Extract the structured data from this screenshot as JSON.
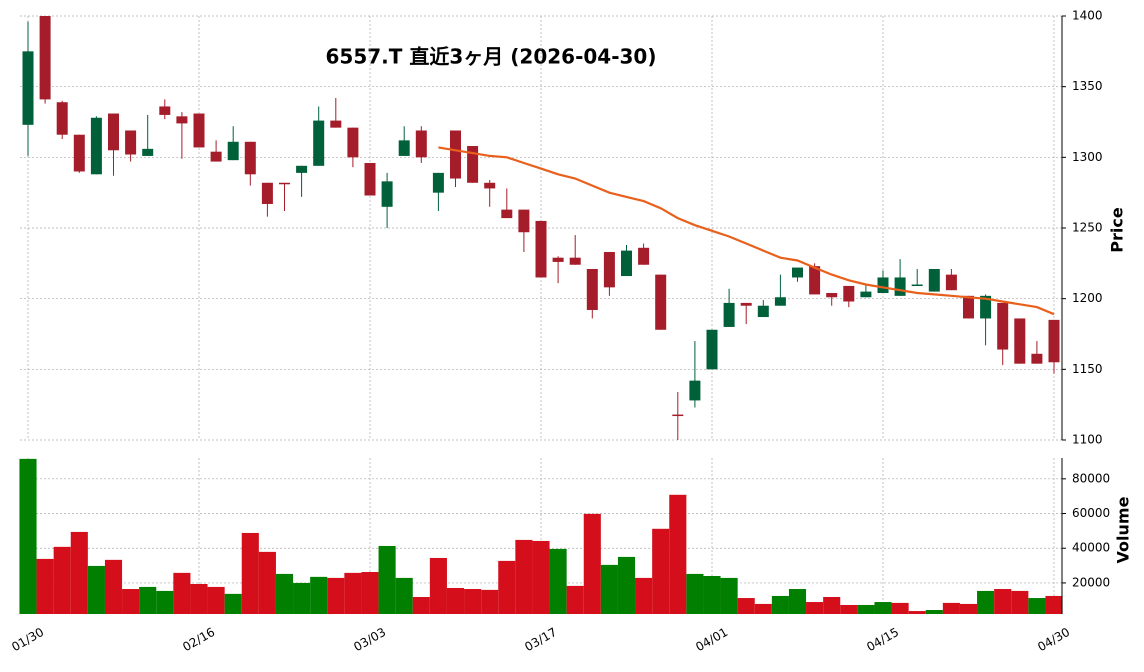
{
  "chart_data": {
    "type": "candlestick",
    "title": "6557.T  直近3ヶ月  (2026-04-30)",
    "categories": [
      "01/30",
      null,
      null,
      null,
      null,
      null,
      null,
      null,
      null,
      null,
      "02/16",
      null,
      null,
      null,
      null,
      null,
      null,
      null,
      null,
      null,
      "03/03",
      null,
      null,
      null,
      null,
      null,
      null,
      null,
      null,
      null,
      "03/17",
      null,
      null,
      null,
      null,
      null,
      null,
      null,
      null,
      null,
      "04/01",
      null,
      null,
      null,
      null,
      null,
      null,
      null,
      null,
      null,
      "04/15",
      null,
      null,
      null,
      null,
      null,
      null,
      null,
      null,
      null,
      "04/30"
    ],
    "open": [
      1323,
      1400,
      1339,
      1316,
      1288,
      1331,
      1319,
      1301,
      1336,
      1329,
      1331,
      1304,
      1298,
      1311,
      1282,
      1282,
      1289,
      1294,
      1326,
      1321,
      1296,
      1265,
      1301,
      1319,
      1275,
      1319,
      1308,
      1282,
      1263,
      1263,
      1255,
      1229,
      1229,
      1221,
      1233,
      1216,
      1236,
      1217,
      1118,
      1128,
      1150,
      1180,
      1197,
      1187,
      1195,
      1215,
      1223,
      1204,
      1209,
      1201,
      1204,
      1202,
      1209,
      1205,
      1217,
      1202,
      1186,
      1197,
      1186,
      1161,
      1185
    ],
    "high": [
      1396,
      1400,
      1340,
      1316,
      1329,
      1331,
      1319,
      1330,
      1341,
      1332,
      1331,
      1312,
      1322,
      1311,
      1282,
      1282,
      1294,
      1336,
      1342,
      1321,
      1296,
      1289,
      1322,
      1322,
      1289,
      1319,
      1308,
      1284,
      1278,
      1263,
      1255,
      1230,
      1245,
      1221,
      1233,
      1238,
      1239,
      1217,
      1134,
      1170,
      1178,
      1207,
      1197,
      1199,
      1217,
      1222,
      1225,
      1204,
      1209,
      1210,
      1220,
      1228,
      1221,
      1221,
      1221,
      1202,
      1203,
      1197,
      1186,
      1170,
      1185
    ],
    "low": [
      1301,
      1338,
      1313,
      1289,
      1288,
      1287,
      1297,
      1301,
      1327,
      1299,
      1307,
      1297,
      1298,
      1280,
      1258,
      1262,
      1272,
      1294,
      1321,
      1293,
      1273,
      1250,
      1301,
      1296,
      1262,
      1279,
      1282,
      1265,
      1257,
      1233,
      1215,
      1211,
      1224,
      1186,
      1202,
      1216,
      1224,
      1178,
      1100,
      1123,
      1150,
      1180,
      1182,
      1187,
      1195,
      1212,
      1203,
      1195,
      1194,
      1201,
      1204,
      1202,
      1209,
      1205,
      1206,
      1186,
      1167,
      1153,
      1154,
      1154,
      1147
    ],
    "close": [
      1375,
      1341,
      1316,
      1290,
      1328,
      1305,
      1302,
      1306,
      1330,
      1324,
      1307,
      1297,
      1311,
      1288,
      1267,
      1281,
      1294,
      1326,
      1321,
      1300,
      1273,
      1283,
      1312,
      1300,
      1289,
      1285,
      1282,
      1278,
      1257,
      1247,
      1215,
      1226,
      1224,
      1192,
      1208,
      1234,
      1224,
      1178,
      1117,
      1142,
      1178,
      1197,
      1195,
      1195,
      1201,
      1222,
      1203,
      1201,
      1198,
      1205,
      1215,
      1215,
      1210,
      1221,
      1206,
      1186,
      1202,
      1164,
      1154,
      1154,
      1155
    ],
    "up_color": "#00603a",
    "down_color": "#a51d2a",
    "ma": {
      "color": "#e8601c",
      "values": [
        null,
        null,
        null,
        null,
        null,
        null,
        null,
        null,
        null,
        null,
        null,
        null,
        null,
        null,
        null,
        null,
        null,
        null,
        null,
        null,
        null,
        null,
        null,
        null,
        1307,
        1305,
        1303,
        1301,
        1300,
        1296,
        1292,
        1288,
        1285,
        1280,
        1275,
        1272,
        1269,
        1264,
        1257,
        1252,
        1248,
        1244,
        1239,
        1234,
        1229,
        1227,
        1222,
        1217,
        1213,
        1210,
        1208,
        1206,
        1204,
        1203,
        1202,
        1201,
        1200,
        1198,
        1196,
        1194,
        1189
      ]
    },
    "ylabel": "Price",
    "ylim": [
      1100,
      1400
    ],
    "yticks": [
      1100,
      1150,
      1200,
      1250,
      1300,
      1350,
      1400
    ],
    "grid": true,
    "volume": {
      "ylabel": "Volume",
      "ylim": [
        2100,
        92000
      ],
      "yticks": [
        20000,
        40000,
        60000,
        80000
      ],
      "values": [
        91500,
        33850,
        40800,
        49400,
        29800,
        33300,
        16500,
        17700,
        15400,
        25800,
        19400,
        17700,
        13700,
        48800,
        37900,
        25200,
        20000,
        23500,
        22900,
        25800,
        26300,
        41300,
        22900,
        11900,
        34400,
        17100,
        16500,
        16000,
        32700,
        44800,
        44200,
        39600,
        18300,
        59800,
        30400,
        35000,
        22900,
        51200,
        70800,
        25200,
        24000,
        22900,
        11300,
        7900,
        12500,
        16500,
        9000,
        11900,
        7300,
        7300,
        9000,
        8500,
        3800,
        4400,
        8500,
        7900,
        15400,
        16500,
        15400,
        11300,
        12500
      ],
      "colors": [
        "#007f00",
        "#d40f1b",
        "#d40f1b",
        "#d40f1b",
        "#007f00",
        "#d40f1b",
        "#d40f1b",
        "#007f00",
        "#007f00",
        "#d40f1b",
        "#d40f1b",
        "#d40f1b",
        "#007f00",
        "#d40f1b",
        "#d40f1b",
        "#007f00",
        "#007f00",
        "#007f00",
        "#d40f1b",
        "#d40f1b",
        "#d40f1b",
        "#007f00",
        "#007f00",
        "#d40f1b",
        "#d40f1b",
        "#d40f1b",
        "#d40f1b",
        "#d40f1b",
        "#d40f1b",
        "#d40f1b",
        "#d40f1b",
        "#007f00",
        "#d40f1b",
        "#d40f1b",
        "#007f00",
        "#007f00",
        "#d40f1b",
        "#d40f1b",
        "#d40f1b",
        "#007f00",
        "#007f00",
        "#007f00",
        "#d40f1b",
        "#d40f1b",
        "#007f00",
        "#007f00",
        "#d40f1b",
        "#d40f1b",
        "#d40f1b",
        "#007f00",
        "#007f00",
        "#d40f1b",
        "#d40f1b",
        "#007f00",
        "#d40f1b",
        "#d40f1b",
        "#007f00",
        "#d40f1b",
        "#d40f1b",
        "#007f00",
        "#d40f1b"
      ]
    }
  }
}
